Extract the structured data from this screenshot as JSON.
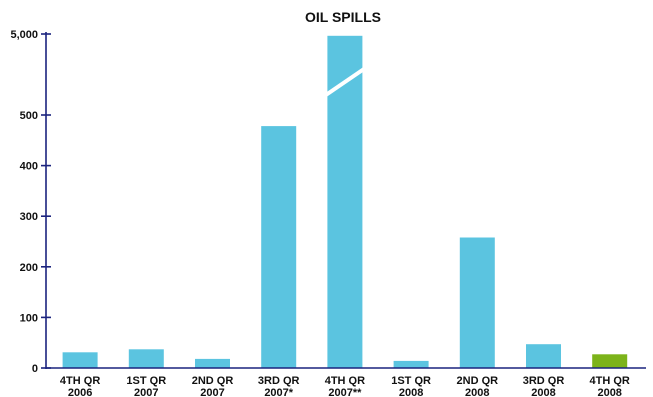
{
  "chart_data": {
    "type": "bar",
    "title": "OIL SPILLS",
    "categories": [
      [
        "4TH QR",
        "2006"
      ],
      [
        "1ST QR",
        "2007"
      ],
      [
        "2ND QR",
        "2007"
      ],
      [
        "3RD QR",
        "2007*"
      ],
      [
        "4TH QR",
        "2007**"
      ],
      [
        "1ST QR",
        "2008"
      ],
      [
        "2ND QR",
        "2008"
      ],
      [
        "3RD QR",
        "2008"
      ],
      [
        "4TH QR",
        "2008"
      ]
    ],
    "values": [
      31,
      37,
      18,
      478,
      4900,
      14,
      258,
      47,
      27
    ],
    "colors": [
      "#5bc4e0",
      "#5bc4e0",
      "#5bc4e0",
      "#5bc4e0",
      "#5bc4e0",
      "#5bc4e0",
      "#5bc4e0",
      "#5bc4e0",
      "#7cb31a"
    ],
    "y_ticks": [
      "0",
      "100",
      "200",
      "300",
      "400",
      "500",
      "5,000"
    ],
    "y_tick_values": [
      0,
      100,
      200,
      300,
      400,
      500,
      5000
    ],
    "ylim": [
      0,
      5000
    ],
    "axis_break": {
      "above": 500,
      "resumes_at": 5000
    },
    "grid": false,
    "xlabel": "",
    "ylabel": ""
  }
}
